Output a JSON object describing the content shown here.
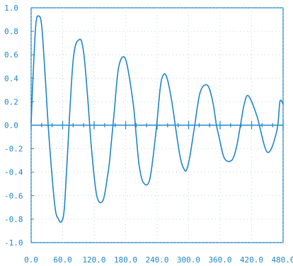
{
  "chart_data": {
    "type": "line",
    "title": "",
    "xlabel": "",
    "ylabel": "",
    "xlim": [
      0,
      480
    ],
    "ylim": [
      -1.0,
      1.0
    ],
    "grid": "dotted",
    "x_ticks": [
      "0.0",
      "60.0",
      "120.0",
      "180.0",
      "240.0",
      "300.0",
      "360.0",
      "420.0",
      "480.0"
    ],
    "x_tick_values": [
      0,
      60,
      120,
      180,
      240,
      300,
      360,
      420,
      480
    ],
    "y_ticks": [
      "1.0",
      "0.8",
      "0.6",
      "0.4",
      "0.2",
      "0.0",
      "-0.2",
      "-0.4",
      "-0.6",
      "-0.8",
      "-1.0"
    ],
    "y_tick_values": [
      1.0,
      0.8,
      0.6,
      0.4,
      0.2,
      0.0,
      -0.2,
      -0.4,
      -0.6,
      -0.8,
      -1.0
    ],
    "series": [
      {
        "x": [
          0,
          4,
          9,
          14,
          20,
          27,
          34,
          45,
          52,
          58,
          63,
          68,
          80,
          92,
          100,
          108,
          115,
          125,
          137,
          146,
          150,
          158,
          167,
          180,
          194,
          200,
          206,
          214,
          226,
          238,
          246,
          252,
          259,
          268,
          283,
          292,
          297,
          303,
          311,
          322,
          336,
          346,
          353,
          358,
          368,
          382,
          391,
          398,
          406,
          414,
          430,
          450,
          468,
          474,
          480
        ],
        "values": [
          0.02,
          0.45,
          0.86,
          0.93,
          0.85,
          0.4,
          -0.1,
          -0.68,
          -0.8,
          -0.82,
          -0.72,
          -0.35,
          0.55,
          0.73,
          0.62,
          0.22,
          -0.2,
          -0.6,
          -0.64,
          -0.42,
          -0.28,
          0.1,
          0.5,
          0.56,
          0.2,
          -0.08,
          -0.35,
          -0.49,
          -0.46,
          -0.05,
          0.32,
          0.43,
          0.4,
          0.2,
          -0.25,
          -0.38,
          -0.37,
          -0.25,
          -0.02,
          0.28,
          0.34,
          0.2,
          0.0,
          -0.1,
          -0.28,
          -0.3,
          -0.19,
          -0.02,
          0.18,
          0.25,
          0.08,
          -0.23,
          -0.05,
          0.2,
          0.18
        ],
        "color": "#1f86c8"
      }
    ],
    "colors": {
      "line": "#1f86c8",
      "axis": "#1f86c8",
      "grid": "#a9c8df",
      "background": "#ffffff"
    }
  }
}
